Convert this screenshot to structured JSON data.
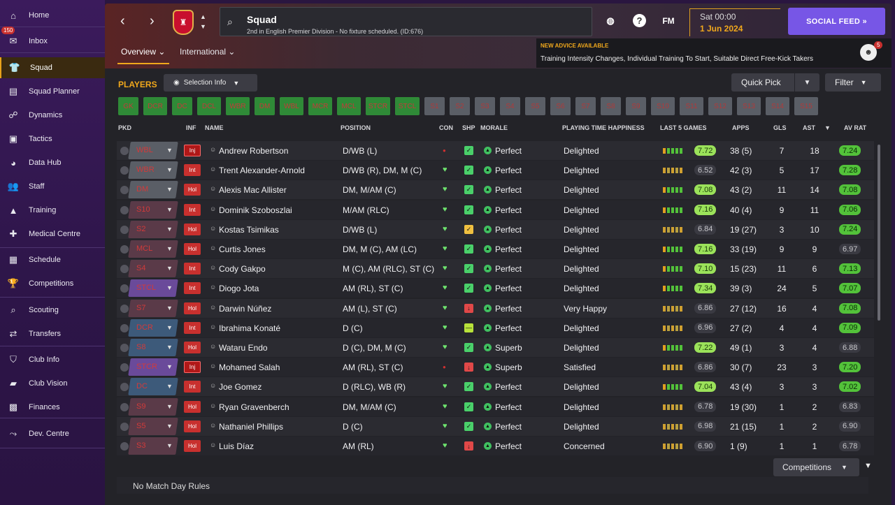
{
  "sidebar": {
    "items": [
      {
        "label": "Home",
        "icon": "home-icon",
        "glyph": "⌂"
      },
      {
        "label": "Inbox",
        "icon": "inbox-icon",
        "glyph": "✉",
        "badge": "150"
      },
      {
        "label": "Squad",
        "icon": "squad-icon",
        "glyph": "👕"
      },
      {
        "label": "Squad Planner",
        "icon": "clipboard-icon",
        "glyph": "▤"
      },
      {
        "label": "Dynamics",
        "icon": "dynamics-icon",
        "glyph": "☍"
      },
      {
        "label": "Tactics",
        "icon": "tactics-icon",
        "glyph": "▣"
      },
      {
        "label": "Data Hub",
        "icon": "data-hub-icon",
        "glyph": "◕"
      },
      {
        "label": "Staff",
        "icon": "staff-icon",
        "glyph": "👥"
      },
      {
        "label": "Training",
        "icon": "training-icon",
        "glyph": "▲"
      },
      {
        "label": "Medical Centre",
        "icon": "medical-icon",
        "glyph": "✚"
      },
      {
        "label": "Schedule",
        "icon": "calendar-icon",
        "glyph": "▦"
      },
      {
        "label": "Competitions",
        "icon": "trophy-icon",
        "glyph": "🏆"
      },
      {
        "label": "Scouting",
        "icon": "scouting-icon",
        "glyph": "⌕"
      },
      {
        "label": "Transfers",
        "icon": "transfers-icon",
        "glyph": "⇄"
      },
      {
        "label": "Club Info",
        "icon": "shield-icon",
        "glyph": "⛉"
      },
      {
        "label": "Club Vision",
        "icon": "briefcase-icon",
        "glyph": "▰"
      },
      {
        "label": "Finances",
        "icon": "finances-icon",
        "glyph": "▩"
      },
      {
        "label": "Dev. Centre",
        "icon": "dev-centre-icon",
        "glyph": "⤳"
      }
    ]
  },
  "header": {
    "title": "Squad",
    "subtitle": "2nd in English Premier Division - No fixture scheduled. (ID:676)",
    "fm_label": "FM",
    "help_label": "?",
    "day_time": "Sat 00:00",
    "date": "1 Jun 2024",
    "social_feed": "SOCIAL FEED  »",
    "tabs": [
      "Overview ⌄",
      "International ⌄"
    ],
    "advice_title": "NEW ADVICE AVAILABLE",
    "advice_body": "Training Intensity Changes, Individual Training To Start, Suitable Direct Free-Kick Takers",
    "advice_count": "5"
  },
  "toolbar": {
    "players": "PLAYERS",
    "selection_info": "Selection Info",
    "quick_pick": "Quick Pick",
    "filter": "Filter",
    "positions": [
      "GK",
      "DCR",
      "DC",
      "DCL",
      "WBR",
      "DM",
      "WBL",
      "MCR",
      "MCL",
      "STCR",
      "STCL",
      "S1",
      "S2",
      "S3",
      "S4",
      "S5",
      "S6",
      "S7",
      "S8",
      "S9",
      "S10",
      "S11",
      "S12",
      "S13",
      "S14",
      "S15"
    ]
  },
  "columns": [
    "PKD",
    "INF",
    "NAME",
    "POSITION",
    "CON",
    "SHP",
    "MORALE",
    "PLAYING TIME HAPPINESS",
    "LAST 5 GAMES",
    "APPS",
    "GLS",
    "AST",
    "AV RAT"
  ],
  "rows": [
    {
      "sel": "WBL",
      "inf": "Inj",
      "name": "Andrew Robertson",
      "pos": "D/WB (L)",
      "con": "red",
      "shp": "green",
      "morale": "Perfect",
      "happy": "Delighted",
      "l5": "7.72",
      "l5c": "gr",
      "apps": "38 (5)",
      "gls": "7",
      "ast": "18",
      "rat": "7.24",
      "ratc": "gn"
    },
    {
      "sel": "WBR",
      "inf": "Int",
      "name": "Trent Alexander-Arnold",
      "pos": "D/WB (R), DM, M (C)",
      "con": "heart",
      "shp": "green",
      "morale": "Perfect",
      "happy": "Delighted",
      "l5": "6.52",
      "l5c": "gy",
      "apps": "42 (3)",
      "gls": "5",
      "ast": "17",
      "rat": "7.28",
      "ratc": "gn"
    },
    {
      "sel": "DM",
      "inf": "Hol",
      "name": "Alexis Mac Allister",
      "pos": "DM, M/AM (C)",
      "con": "heart",
      "shp": "green",
      "morale": "Perfect",
      "happy": "Delighted",
      "l5": "7.08",
      "l5c": "gr",
      "apps": "43 (2)",
      "gls": "11",
      "ast": "14",
      "rat": "7.08",
      "ratc": "gn"
    },
    {
      "sel": "S10",
      "inf": "Int",
      "name": "Dominik Szoboszlai",
      "pos": "M/AM (RLC)",
      "con": "heart",
      "shp": "green",
      "morale": "Perfect",
      "happy": "Delighted",
      "l5": "7.16",
      "l5c": "gr",
      "apps": "40 (4)",
      "gls": "9",
      "ast": "11",
      "rat": "7.06",
      "ratc": "gn"
    },
    {
      "sel": "S2",
      "inf": "Hol",
      "name": "Kostas Tsimikas",
      "pos": "D/WB (L)",
      "con": "heart",
      "shp": "yellow",
      "morale": "Perfect",
      "happy": "Delighted",
      "l5": "6.84",
      "l5c": "gy",
      "apps": "19 (27)",
      "gls": "3",
      "ast": "10",
      "rat": "7.24",
      "ratc": "gn"
    },
    {
      "sel": "MCL",
      "inf": "Hol",
      "name": "Curtis Jones",
      "pos": "DM, M (C), AM (LC)",
      "con": "heart",
      "shp": "green",
      "morale": "Perfect",
      "happy": "Delighted",
      "l5": "7.16",
      "l5c": "gr",
      "apps": "33 (19)",
      "gls": "9",
      "ast": "9",
      "rat": "6.97",
      "ratc": "gy"
    },
    {
      "sel": "S4",
      "inf": "Int",
      "name": "Cody Gakpo",
      "pos": "M (C), AM (RLC), ST (C)",
      "con": "heart",
      "shp": "green",
      "morale": "Perfect",
      "happy": "Delighted",
      "l5": "7.10",
      "l5c": "gr",
      "apps": "15 (23)",
      "gls": "11",
      "ast": "6",
      "rat": "7.13",
      "ratc": "gn"
    },
    {
      "sel": "STCL",
      "inf": "Int",
      "name": "Diogo Jota",
      "pos": "AM (RL), ST (C)",
      "con": "heart",
      "shp": "green",
      "morale": "Perfect",
      "happy": "Delighted",
      "l5": "7.34",
      "l5c": "gr",
      "apps": "39 (3)",
      "gls": "24",
      "ast": "5",
      "rat": "7.07",
      "ratc": "gn"
    },
    {
      "sel": "S7",
      "inf": "Hol",
      "name": "Darwin Núñez",
      "pos": "AM (L), ST (C)",
      "con": "heart",
      "shp": "red",
      "morale": "Perfect",
      "happy": "Very Happy",
      "l5": "6.86",
      "l5c": "gy",
      "apps": "27 (12)",
      "gls": "16",
      "ast": "4",
      "rat": "7.08",
      "ratc": "gn"
    },
    {
      "sel": "DCR",
      "inf": "Int",
      "name": "Ibrahima Konaté",
      "pos": "D (C)",
      "con": "heart",
      "shp": "lime",
      "morale": "Perfect",
      "happy": "Delighted",
      "l5": "6.96",
      "l5c": "gy",
      "apps": "27 (2)",
      "gls": "4",
      "ast": "4",
      "rat": "7.09",
      "ratc": "gn"
    },
    {
      "sel": "S8",
      "inf": "Hol",
      "name": "Wataru Endo",
      "pos": "D (C), DM, M (C)",
      "con": "heart",
      "shp": "green",
      "morale": "Superb",
      "happy": "Delighted",
      "l5": "7.22",
      "l5c": "gr",
      "apps": "49 (1)",
      "gls": "3",
      "ast": "4",
      "rat": "6.88",
      "ratc": "gy"
    },
    {
      "sel": "STCR",
      "inf": "Inj",
      "name": "Mohamed Salah",
      "pos": "AM (RL), ST (C)",
      "con": "red",
      "shp": "red",
      "morale": "Superb",
      "happy": "Satisfied",
      "l5": "6.86",
      "l5c": "gy",
      "apps": "30 (7)",
      "gls": "23",
      "ast": "3",
      "rat": "7.20",
      "ratc": "gn"
    },
    {
      "sel": "DC",
      "inf": "Int",
      "name": "Joe Gomez",
      "pos": "D (RLC), WB (R)",
      "con": "heart",
      "shp": "green",
      "morale": "Perfect",
      "happy": "Delighted",
      "l5": "7.04",
      "l5c": "gr",
      "apps": "43 (4)",
      "gls": "3",
      "ast": "3",
      "rat": "7.02",
      "ratc": "gn"
    },
    {
      "sel": "S9",
      "inf": "Hol",
      "name": "Ryan Gravenberch",
      "pos": "DM, M/AM (C)",
      "con": "heart",
      "shp": "green",
      "morale": "Perfect",
      "happy": "Delighted",
      "l5": "6.78",
      "l5c": "gy",
      "apps": "19 (30)",
      "gls": "1",
      "ast": "2",
      "rat": "6.83",
      "ratc": "gy"
    },
    {
      "sel": "S5",
      "inf": "Hol",
      "name": "Nathaniel Phillips",
      "pos": "D (C)",
      "con": "heart",
      "shp": "green",
      "morale": "Perfect",
      "happy": "Delighted",
      "l5": "6.98",
      "l5c": "gy",
      "apps": "21 (15)",
      "gls": "1",
      "ast": "2",
      "rat": "6.90",
      "ratc": "gy"
    },
    {
      "sel": "S3",
      "inf": "Hol",
      "name": "Luis Díaz",
      "pos": "AM (RL)",
      "con": "heart",
      "shp": "red",
      "morale": "Perfect",
      "happy": "Concerned",
      "l5": "6.90",
      "l5c": "gy",
      "apps": "1 (9)",
      "gls": "1",
      "ast": "1",
      "rat": "6.78",
      "ratc": "gy"
    }
  ],
  "footer": {
    "competitions": "Competitions",
    "rules": "No Match Day Rules"
  }
}
